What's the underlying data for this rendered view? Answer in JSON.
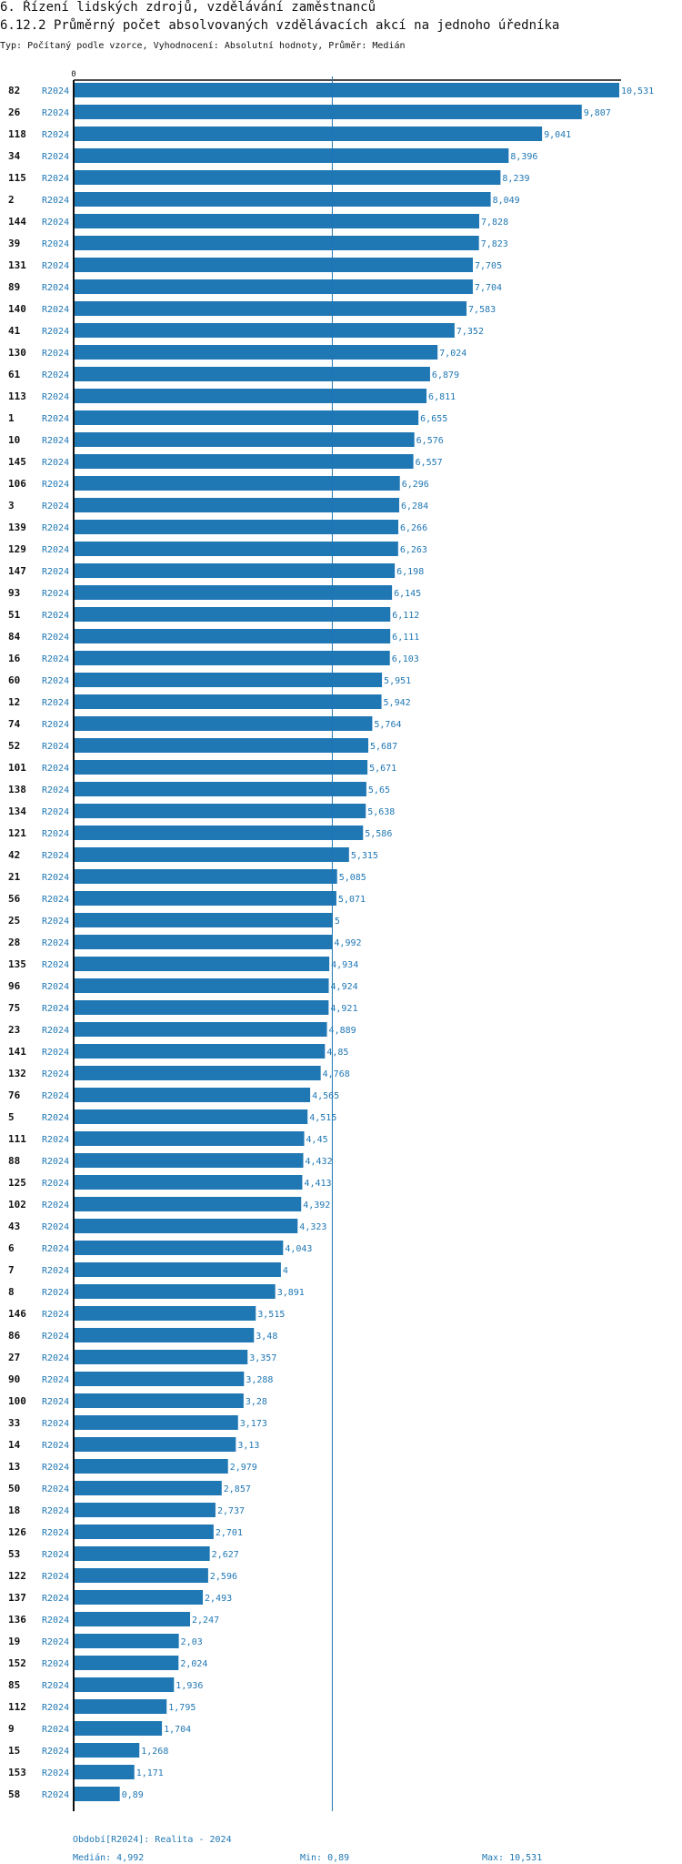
{
  "header": {
    "section": "6. Řízení lidských zdrojů, vzdělávání zaměstnanců",
    "title": "6.12.2 Průměrný počet absolvovaných vzdělávacích akcí na jednoho úředníka",
    "subtitle": "Typ: Počítaný podle vzorce, Vyhodnocení: Absolutní hodnoty, Průměr: Medián"
  },
  "chart_data": {
    "type": "bar",
    "orientation": "horizontal",
    "series_label": "R2024",
    "axis_zero_label": "0",
    "xlim": [
      0,
      10.531
    ],
    "median": 4.992,
    "colors": {
      "bar": "#1f77b4",
      "label": "#1f77b4",
      "axis": "#111111"
    },
    "categories": [
      "82",
      "26",
      "118",
      "34",
      "115",
      "2",
      "144",
      "39",
      "131",
      "89",
      "140",
      "41",
      "130",
      "61",
      "113",
      "1",
      "10",
      "145",
      "106",
      "3",
      "139",
      "129",
      "147",
      "93",
      "51",
      "84",
      "16",
      "60",
      "12",
      "74",
      "52",
      "101",
      "138",
      "134",
      "121",
      "42",
      "21",
      "56",
      "25",
      "28",
      "135",
      "96",
      "75",
      "23",
      "141",
      "132",
      "76",
      "5",
      "111",
      "88",
      "125",
      "102",
      "43",
      "6",
      "7",
      "8",
      "146",
      "86",
      "27",
      "90",
      "100",
      "33",
      "14",
      "13",
      "50",
      "18",
      "126",
      "53",
      "122",
      "137",
      "136",
      "19",
      "152",
      "85",
      "112",
      "9",
      "15",
      "153",
      "58"
    ],
    "values": [
      10.531,
      9.807,
      9.041,
      8.396,
      8.239,
      8.049,
      7.828,
      7.823,
      7.705,
      7.704,
      7.583,
      7.352,
      7.024,
      6.879,
      6.811,
      6.655,
      6.576,
      6.557,
      6.296,
      6.284,
      6.266,
      6.263,
      6.198,
      6.145,
      6.112,
      6.111,
      6.103,
      5.951,
      5.942,
      5.764,
      5.687,
      5.671,
      5.65,
      5.638,
      5.586,
      5.315,
      5.085,
      5.071,
      5,
      4.992,
      4.934,
      4.924,
      4.921,
      4.889,
      4.85,
      4.768,
      4.565,
      4.515,
      4.45,
      4.432,
      4.413,
      4.392,
      4.323,
      4.043,
      4,
      3.891,
      3.515,
      3.48,
      3.357,
      3.288,
      3.28,
      3.173,
      3.13,
      2.979,
      2.857,
      2.737,
      2.701,
      2.627,
      2.596,
      2.493,
      2.247,
      2.03,
      2.024,
      1.936,
      1.795,
      1.704,
      1.268,
      1.171,
      0.89
    ],
    "value_labels": [
      "10,531",
      "9,807",
      "9,041",
      "8,396",
      "8,239",
      "8,049",
      "7,828",
      "7,823",
      "7,705",
      "7,704",
      "7,583",
      "7,352",
      "7,024",
      "6,879",
      "6,811",
      "6,655",
      "6,576",
      "6,557",
      "6,296",
      "6,284",
      "6,266",
      "6,263",
      "6,198",
      "6,145",
      "6,112",
      "6,111",
      "6,103",
      "5,951",
      "5,942",
      "5,764",
      "5,687",
      "5,671",
      "5,65",
      "5,638",
      "5,586",
      "5,315",
      "5,085",
      "5,071",
      "5",
      "4,992",
      "4,934",
      "4,924",
      "4,921",
      "4,889",
      "4,85",
      "4,768",
      "4,565",
      "4,515",
      "4,45",
      "4,432",
      "4,413",
      "4,392",
      "4,323",
      "4,043",
      "4",
      "3,891",
      "3,515",
      "3,48",
      "3,357",
      "3,288",
      "3,28",
      "3,173",
      "3,13",
      "2,979",
      "2,857",
      "2,737",
      "2,701",
      "2,627",
      "2,596",
      "2,493",
      "2,247",
      "2,03",
      "2,024",
      "1,936",
      "1,795",
      "1,704",
      "1,268",
      "1,171",
      "0,89"
    ]
  },
  "footer": {
    "period": "Období[R2024]: Realita - 2024",
    "median": "Medián: 4,992",
    "min": "Min: 0,89",
    "max": "Max: 10,531"
  }
}
